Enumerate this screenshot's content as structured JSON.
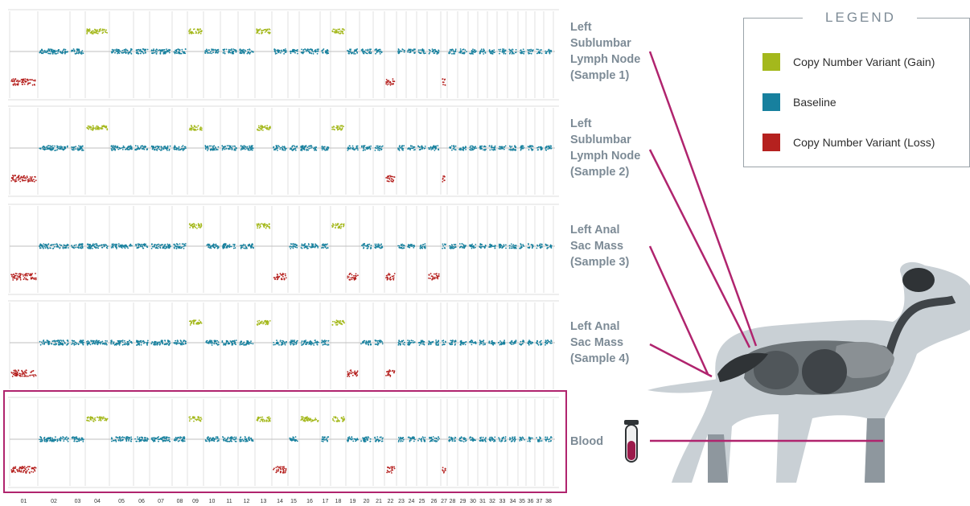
{
  "legend": {
    "title": "LEGEND",
    "items": [
      {
        "label": "Copy Number Variant (Gain)",
        "color": "#a4b81c"
      },
      {
        "label": "Baseline",
        "color": "#17809e"
      },
      {
        "label": "Copy Number Variant (Loss)",
        "color": "#b5211f"
      }
    ]
  },
  "samples": [
    {
      "label": "Left\nSublumbar\nLymph Node\n(Sample 1)",
      "gain": [
        "04",
        "09",
        "13",
        "18"
      ],
      "loss": [
        "01",
        "22",
        "27"
      ]
    },
    {
      "label": "Left\nSublumbar\nLymph Node\n(Sample 2)",
      "gain": [
        "04",
        "09",
        "13",
        "18"
      ],
      "loss": [
        "01",
        "22",
        "27"
      ]
    },
    {
      "label": "Left Anal\nSac Mass\n(Sample 3)",
      "gain": [
        "09",
        "13",
        "18"
      ],
      "loss": [
        "01",
        "14",
        "19",
        "22",
        "26"
      ]
    },
    {
      "label": "Left Anal\nSac Mass\n(Sample 4)",
      "gain": [
        "09",
        "13",
        "18"
      ],
      "loss": [
        "01",
        "19",
        "22"
      ]
    },
    {
      "label": "Blood",
      "gain": [
        "04",
        "09",
        "13",
        "16",
        "18"
      ],
      "loss": [
        "01",
        "14",
        "22",
        "27"
      ]
    }
  ],
  "x_ticks": [
    "01",
    "02",
    "03",
    "04",
    "05",
    "06",
    "07",
    "08",
    "09",
    "10",
    "11",
    "12",
    "13",
    "14",
    "15",
    "16",
    "17",
    "18",
    "19",
    "20",
    "21",
    "22",
    "23",
    "24",
    "25",
    "26",
    "27",
    "28",
    "29",
    "30",
    "31",
    "32",
    "33",
    "34",
    "35",
    "36",
    "37",
    "38"
  ],
  "colors": {
    "highlight": "#b0246e",
    "baseline_line": "#bfbfbf",
    "dog_body": "#c9d0d5",
    "dog_dark": "#4a4f53"
  },
  "icons": {
    "tube": "blood-tube-icon",
    "dog": "dog-anatomy-illustration"
  }
}
